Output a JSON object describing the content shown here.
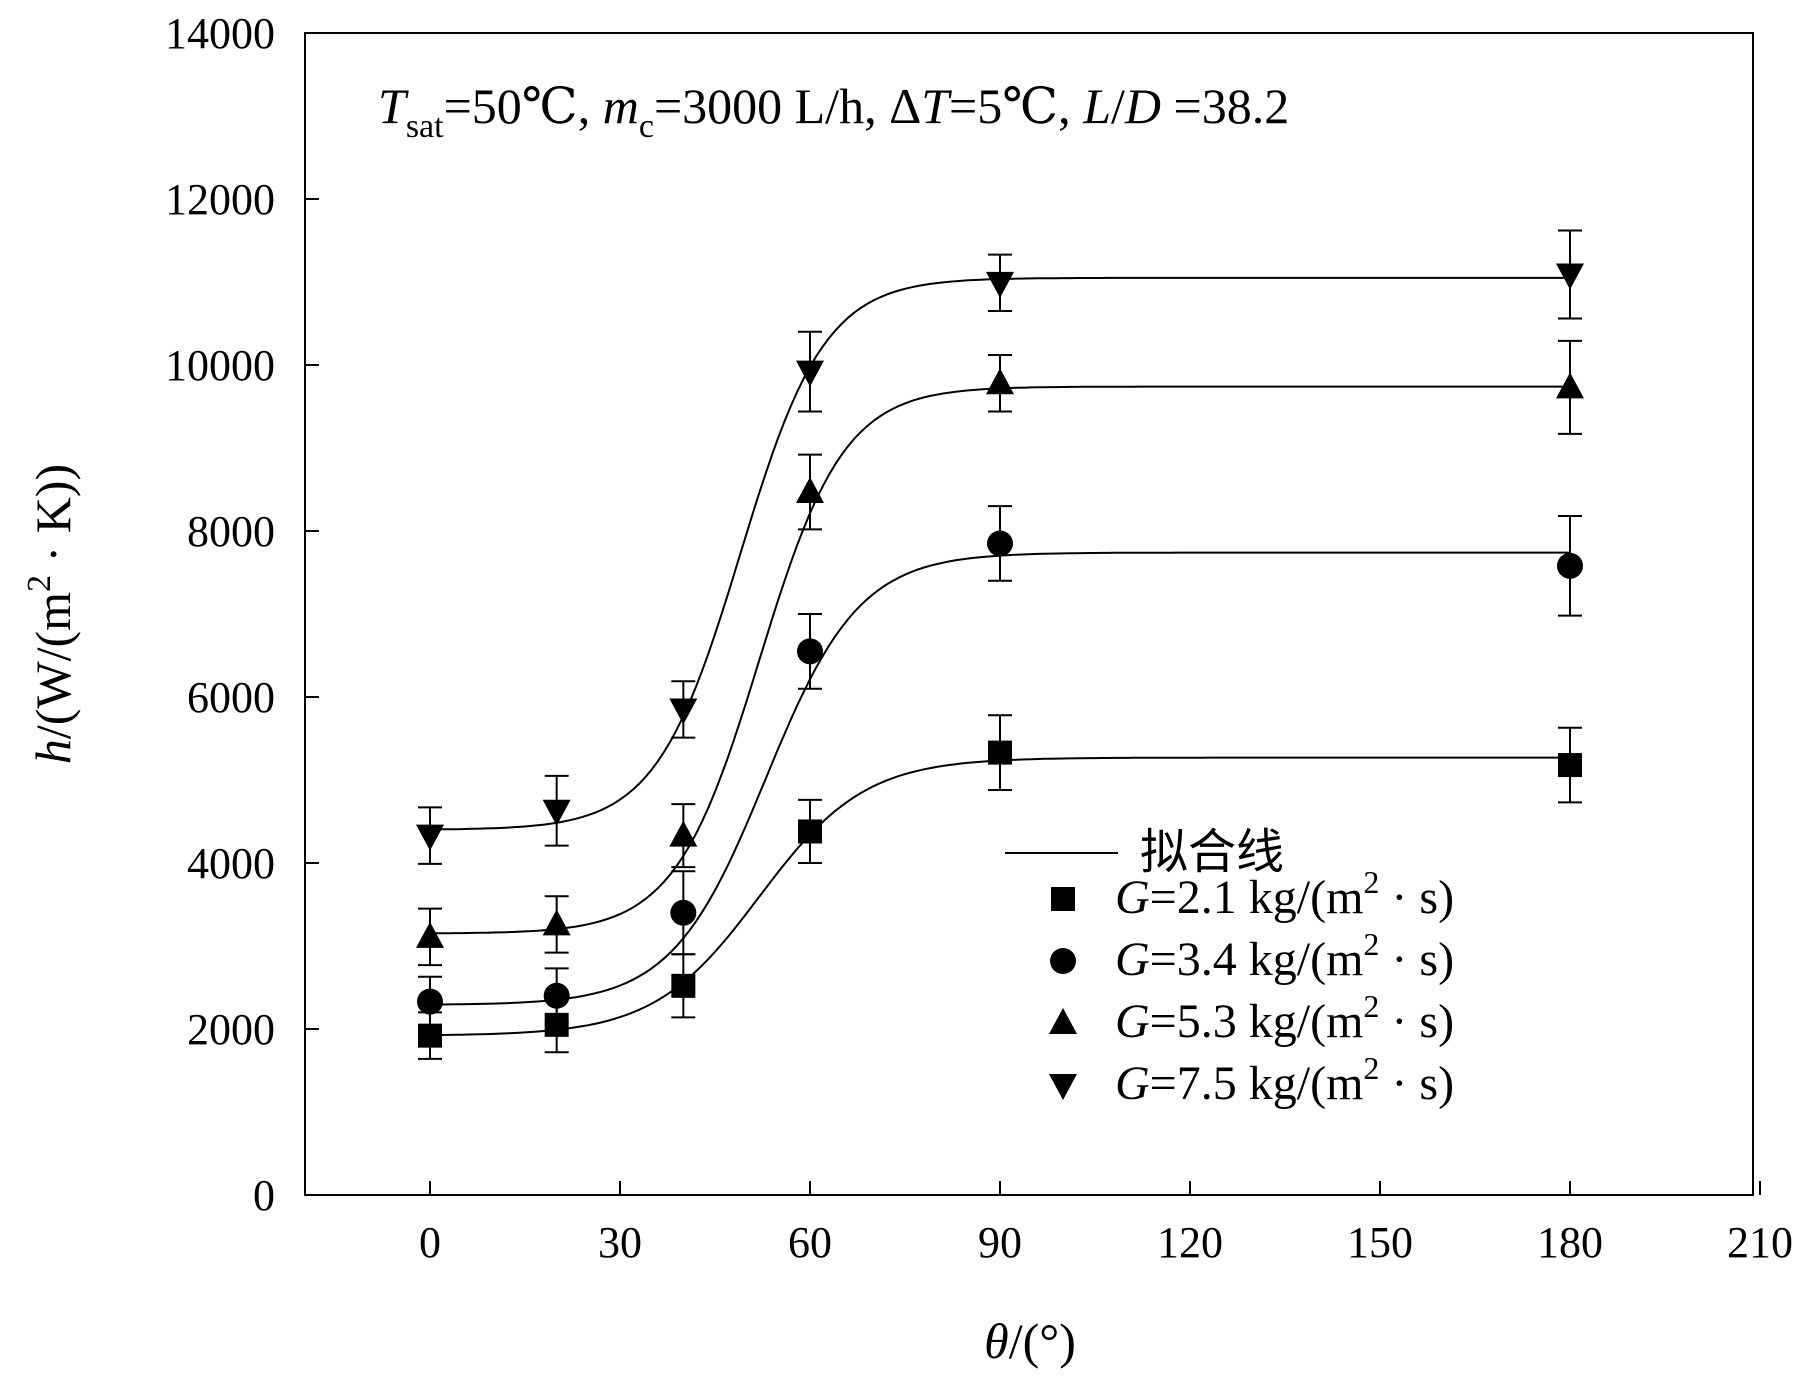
{
  "chart_data": {
    "type": "scatter",
    "title": "",
    "annotation": {
      "t_sym": "T",
      "t_sub": "sat",
      "t_val": "=50℃, ",
      "m_sym": "m",
      "m_sub": "c",
      "m_val": "=3000 L/h, ",
      "dt_delta": "Δ",
      "dt_sym": "T",
      "dt_val": "=5℃, ",
      "l_sym": "L",
      "slash": "/",
      "d_sym": "D",
      "ld_val": " =38.2"
    },
    "xlabel": {
      "sym": "θ",
      "unit": "/(°)"
    },
    "ylabel": {
      "sym": "h",
      "unit": "/(W/(m",
      "sup": "2",
      "tail": " · K))"
    },
    "x_ticks": [
      "0",
      "30",
      "60",
      "90",
      "120",
      "150",
      "180",
      "210"
    ],
    "y_ticks": [
      "0",
      "2000",
      "4000",
      "6000",
      "8000",
      "10000",
      "12000",
      "14000"
    ],
    "xlim": [
      -20,
      210
    ],
    "ylim": [
      0,
      14000
    ],
    "x_categories_plotted": [
      0,
      20,
      40,
      60,
      90,
      180
    ],
    "fit_label": "拟合线",
    "series": [
      {
        "name": "G=2.1 kg/(m² · s)",
        "legend_sym": "G",
        "legend_val": "=2.1 kg/(m",
        "legend_sup": "2",
        "legend_tail": " · s)",
        "marker": "square",
        "x": [
          0,
          20,
          40,
          60,
          90,
          180
        ],
        "y": [
          1920,
          2050,
          2520,
          4380,
          5330,
          5180
        ],
        "err": [
          280,
          330,
          380,
          380,
          450,
          450
        ],
        "fit": {
          "base": 1920,
          "amp": 3350,
          "x0": 52,
          "k": 0.12
        }
      },
      {
        "name": "G=3.4 kg/(m² · s)",
        "legend_sym": "G",
        "legend_val": "=3.4 kg/(m",
        "legend_sup": "2",
        "legend_tail": " · s)",
        "marker": "circle",
        "x": [
          0,
          20,
          40,
          60,
          90,
          180
        ],
        "y": [
          2330,
          2400,
          3400,
          6550,
          7850,
          7580
        ],
        "err": [
          300,
          330,
          500,
          450,
          450,
          600
        ],
        "fit": {
          "base": 2290,
          "amp": 5450,
          "x0": 53,
          "k": 0.135
        }
      },
      {
        "name": "G=5.3 kg/(m² · s)",
        "legend_sym": "G",
        "legend_val": "=5.3 kg/(m",
        "legend_sup": "2",
        "legend_tail": " · s)",
        "marker": "triangle-up",
        "x": [
          0,
          20,
          40,
          60,
          90,
          180
        ],
        "y": [
          3110,
          3260,
          4330,
          8470,
          9780,
          9730
        ],
        "err": [
          340,
          340,
          380,
          450,
          340,
          560
        ],
        "fit": {
          "base": 3150,
          "amp": 6590,
          "x0": 52,
          "k": 0.15
        }
      },
      {
        "name": "G=7.5 kg/(m² · s)",
        "legend_sym": "G",
        "legend_val": "=7.5 kg/(m",
        "legend_sup": "2",
        "legend_tail": " · s)",
        "marker": "triangle-down",
        "x": [
          0,
          20,
          40,
          60,
          90,
          180
        ],
        "y": [
          4330,
          4630,
          5850,
          9920,
          10990,
          11090
        ],
        "err": [
          340,
          420,
          340,
          480,
          340,
          530
        ],
        "fit": {
          "base": 4400,
          "amp": 6650,
          "x0": 49,
          "k": 0.15
        }
      }
    ]
  }
}
